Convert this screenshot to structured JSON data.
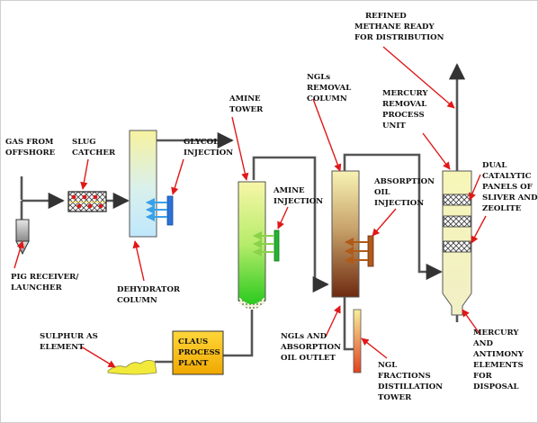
{
  "labels": {
    "refined_methane": [
      "REFINED",
      "METHANE READY",
      "FOR DISTRIBUTION"
    ],
    "ngls_removal_column": [
      "NGLs",
      "REMOVAL",
      "COLUMN"
    ],
    "mercury_removal_unit": [
      "MERCURY",
      "REMOVAL",
      "PROCESS",
      "UNIT"
    ],
    "dual_catalytic_panels": [
      "DUAL",
      "CATALYTIC",
      "PANELS OF",
      "SLIVER AND",
      "ZEOLITE"
    ],
    "amine_tower": [
      "AMINE",
      "TOWER"
    ],
    "gas_from_offshore": [
      "GAS FROM",
      "OFFSHORE"
    ],
    "slug_catcher": [
      "SLUG",
      "CATCHER"
    ],
    "glycol_injection": [
      "GLYCOL",
      "INJECTION"
    ],
    "amine_injection": [
      "AMINE",
      "INJECTION"
    ],
    "absorption_oil_injection": [
      "ABSORPTION",
      "OIL",
      "INJECTION"
    ],
    "pig_receiver": [
      "PIG RECEIVER/",
      "LAUNCHER"
    ],
    "dehydrator_column": [
      "DEHYDRATOR",
      "COLUMN"
    ],
    "claus_process_plant": [
      "CLAUS",
      "PROCESS",
      "PLANT"
    ],
    "sulphur_as_element": [
      "SULPHUR AS",
      "ELEMENT"
    ],
    "ngls_absorption_outlet": [
      "NGLs AND",
      "ABSORPTION",
      "OIL OUTLET"
    ],
    "ngl_fractions_tower": [
      "NGL",
      "FRACTIONS",
      "DISTILLATION",
      "TOWER"
    ],
    "mercury_antimony_elements": [
      "MERCURY",
      "AND",
      "ANTIMONY",
      "ELEMENTS",
      "FOR",
      "DISPOSAL"
    ]
  },
  "colors": {
    "pipe": "#555555",
    "pointer_arrows": "#e01818",
    "slug_catcher_fill": "#f3d64a",
    "claus_plant_fill": "#f5b800",
    "sulphur_fill": "#f2ea3a"
  }
}
